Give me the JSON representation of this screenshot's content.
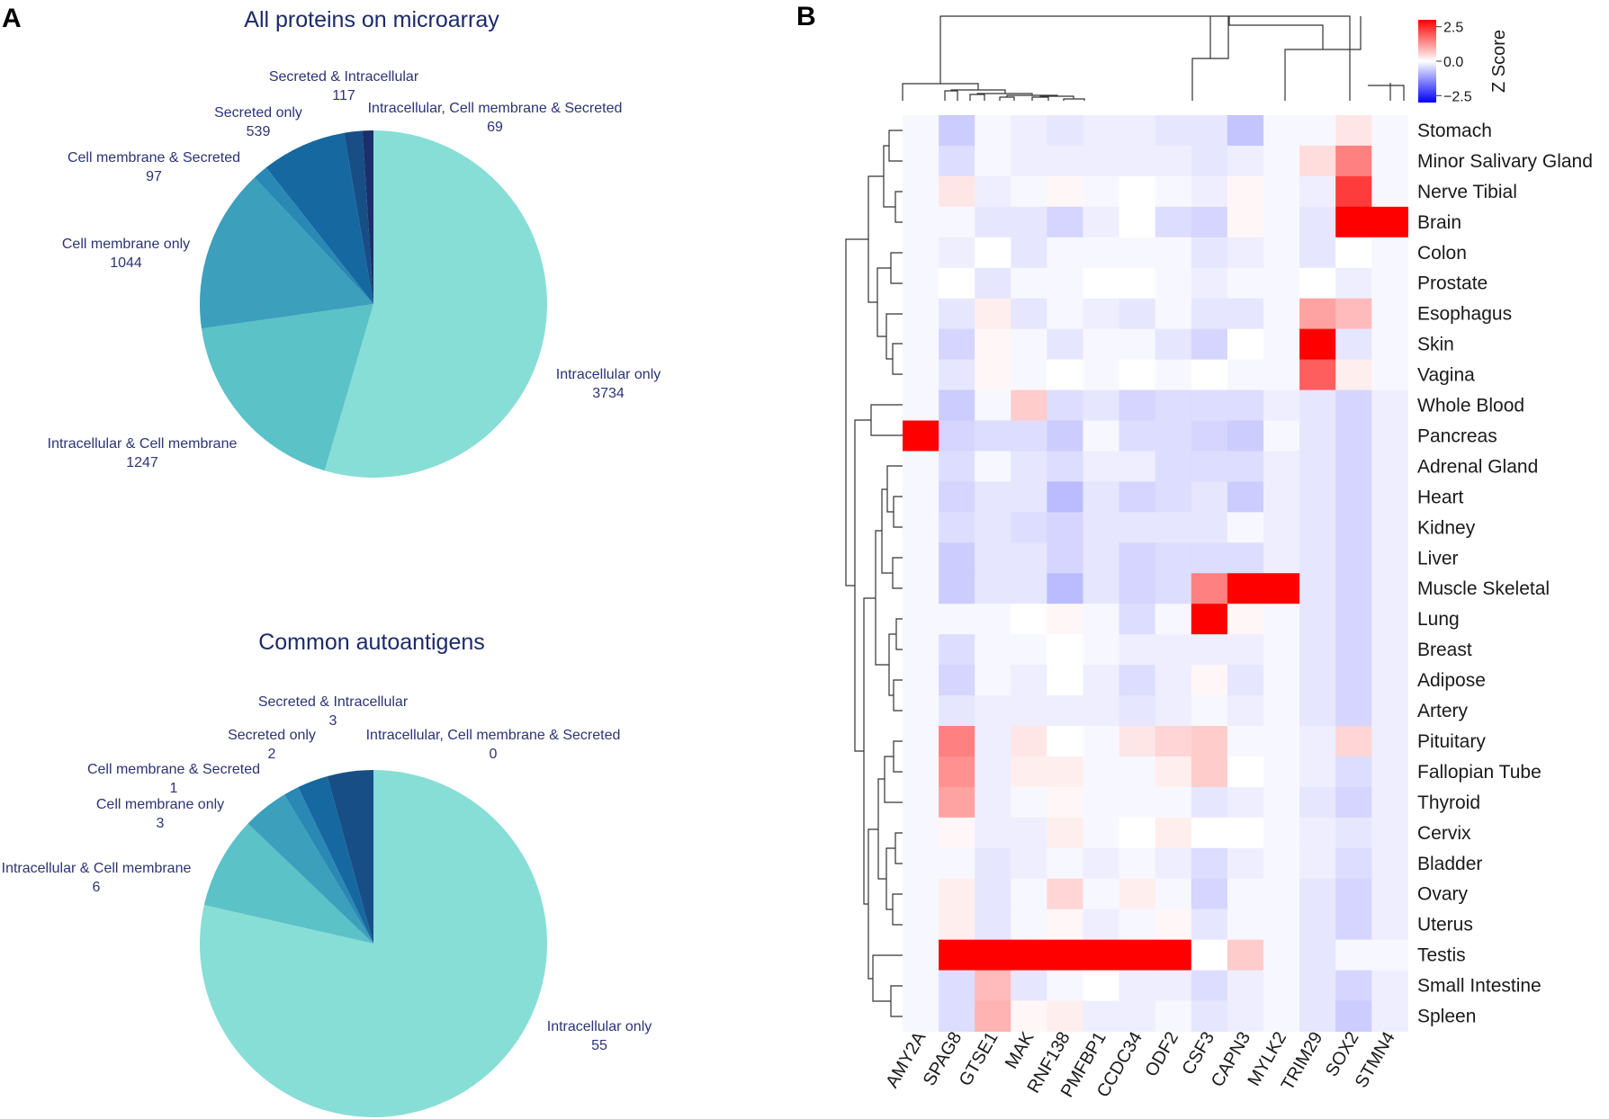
{
  "panels": {
    "a_letter": "A",
    "b_letter": "B"
  },
  "chart_data": [
    {
      "type": "pie",
      "title": "All proteins on microarray",
      "slices": [
        {
          "label": "Intracellular only",
          "value": 3734,
          "value_text": "3734",
          "color": "#87ded6"
        },
        {
          "label": "Intracellular & Cell membrane",
          "value": 1247,
          "value_text": "1247",
          "color": "#5bc2c8"
        },
        {
          "label": "Cell membrane only",
          "value": 1044,
          "value_text": "1044",
          "color": "#3c9fbc"
        },
        {
          "label": "Cell membrane & Secreted",
          "value": 97,
          "value_text": "97",
          "color": "#2a88b4"
        },
        {
          "label": "Secreted only",
          "value": 539,
          "value_text": "539",
          "color": "#1668a0"
        },
        {
          "label": "Secreted & Intracellular",
          "value": 117,
          "value_text": "117",
          "color": "#184e86"
        },
        {
          "label": "Intracellular, Cell membrane & Secreted",
          "value": 69,
          "value_text": "69",
          "color": "#1c2f6a"
        }
      ]
    },
    {
      "type": "pie",
      "title": "Common autoantigens",
      "slices": [
        {
          "label": "Intracellular only",
          "value": 55,
          "value_text": "55",
          "color": "#87ded6"
        },
        {
          "label": "Intracellular & Cell membrane",
          "value": 6,
          "value_text": "6",
          "color": "#5bc2c8"
        },
        {
          "label": "Cell membrane only",
          "value": 3,
          "value_text": "3",
          "color": "#3c9fbc"
        },
        {
          "label": "Cell membrane & Secreted",
          "value": 1,
          "value_text": "1",
          "color": "#2a88b4"
        },
        {
          "label": "Secreted only",
          "value": 2,
          "value_text": "2",
          "color": "#1668a0"
        },
        {
          "label": "Secreted & Intracellular",
          "value": 3,
          "value_text": "3",
          "color": "#184e86"
        },
        {
          "label": "Intracellular, Cell membrane & Secreted",
          "value": 0,
          "value_text": "0",
          "color": "#1c2f6a"
        }
      ]
    },
    {
      "type": "heatmap",
      "colorbar": {
        "title": "Z Score",
        "ticks": [
          "2.5",
          "0.0",
          "−2.5"
        ],
        "tick_values": [
          2.5,
          0.0,
          -2.5
        ],
        "range": [
          -3,
          3
        ]
      },
      "columns": [
        "AMY2A",
        "SPAG8",
        "GTSE1",
        "MAK",
        "RNF138",
        "PMFBP1",
        "CCDC34",
        "ODF2",
        "CSF3",
        "CAPN3",
        "MYLK2",
        "TRIM29",
        "SOX2",
        "STMN4"
      ],
      "rows": [
        "Stomach",
        "Minor Salivary Gland",
        "Nerve Tibial",
        "Brain",
        "Colon",
        "Prostate",
        "Esophagus",
        "Skin",
        "Vagina",
        "Whole Blood",
        "Pancreas",
        "Adrenal Gland",
        "Heart",
        "Kidney",
        "Liver",
        "Muscle Skeletal",
        "Lung",
        "Breast",
        "Adipose",
        "Artery",
        "Pituitary",
        "Fallopian Tube",
        "Thyroid",
        "Cervix",
        "Bladder",
        "Ovary",
        "Uterus",
        "Testis",
        "Small Intestine",
        "Spleen"
      ],
      "values": [
        [
          -0.1,
          -0.6,
          -0.1,
          -0.2,
          -0.3,
          -0.2,
          -0.2,
          -0.3,
          -0.3,
          -0.7,
          -0.1,
          -0.1,
          0.3,
          -0.1
        ],
        [
          -0.1,
          -0.4,
          -0.1,
          -0.2,
          -0.2,
          -0.2,
          -0.2,
          -0.2,
          -0.3,
          -0.2,
          -0.1,
          0.4,
          1.5,
          -0.1
        ],
        [
          -0.1,
          0.3,
          -0.2,
          -0.1,
          0.1,
          -0.1,
          0.0,
          -0.1,
          -0.2,
          0.1,
          -0.1,
          -0.2,
          2.3,
          -0.1
        ],
        [
          -0.1,
          -0.1,
          -0.3,
          -0.3,
          -0.5,
          -0.2,
          0.0,
          -0.4,
          -0.5,
          0.1,
          -0.1,
          -0.3,
          3.0,
          3.0
        ],
        [
          -0.1,
          -0.2,
          0.0,
          -0.3,
          -0.1,
          -0.1,
          -0.1,
          -0.1,
          -0.3,
          -0.2,
          -0.1,
          -0.3,
          0.0,
          -0.1
        ],
        [
          -0.1,
          0.0,
          -0.3,
          -0.1,
          -0.1,
          0.0,
          0.0,
          -0.1,
          -0.2,
          -0.1,
          -0.1,
          0.0,
          -0.2,
          -0.1
        ],
        [
          -0.1,
          -0.3,
          0.2,
          -0.3,
          -0.1,
          -0.2,
          -0.3,
          -0.1,
          -0.3,
          -0.3,
          -0.1,
          1.1,
          0.8,
          -0.1
        ],
        [
          -0.1,
          -0.5,
          0.1,
          -0.1,
          -0.3,
          -0.1,
          -0.1,
          -0.3,
          -0.5,
          0.0,
          -0.1,
          3.0,
          -0.3,
          -0.1
        ],
        [
          -0.1,
          -0.3,
          0.1,
          -0.1,
          0.0,
          -0.1,
          0.0,
          -0.1,
          0.0,
          -0.1,
          -0.1,
          1.9,
          0.2,
          -0.1
        ],
        [
          -0.1,
          -0.6,
          -0.1,
          0.6,
          -0.4,
          -0.3,
          -0.5,
          -0.4,
          -0.4,
          -0.4,
          -0.2,
          -0.3,
          -0.5,
          -0.2
        ],
        [
          3.0,
          -0.5,
          -0.4,
          -0.4,
          -0.6,
          -0.1,
          -0.4,
          -0.4,
          -0.5,
          -0.6,
          -0.1,
          -0.3,
          -0.5,
          -0.2
        ],
        [
          -0.1,
          -0.4,
          -0.1,
          -0.3,
          -0.4,
          -0.2,
          -0.2,
          -0.4,
          -0.4,
          -0.4,
          -0.2,
          -0.3,
          -0.5,
          -0.2
        ],
        [
          -0.1,
          -0.5,
          -0.3,
          -0.3,
          -0.8,
          -0.3,
          -0.5,
          -0.4,
          -0.3,
          -0.6,
          -0.2,
          -0.3,
          -0.5,
          -0.2
        ],
        [
          -0.1,
          -0.4,
          -0.3,
          -0.4,
          -0.5,
          -0.3,
          -0.3,
          -0.3,
          -0.3,
          -0.1,
          -0.2,
          -0.3,
          -0.5,
          -0.2
        ],
        [
          -0.1,
          -0.6,
          -0.3,
          -0.3,
          -0.5,
          -0.3,
          -0.5,
          -0.4,
          -0.4,
          -0.4,
          -0.2,
          -0.3,
          -0.5,
          -0.2
        ],
        [
          -0.1,
          -0.6,
          -0.3,
          -0.3,
          -0.8,
          -0.3,
          -0.5,
          -0.4,
          1.5,
          3.0,
          3.0,
          -0.3,
          -0.5,
          -0.2
        ],
        [
          -0.1,
          -0.1,
          -0.1,
          0.0,
          0.1,
          -0.1,
          -0.4,
          -0.1,
          3.0,
          0.1,
          -0.1,
          -0.3,
          -0.5,
          -0.2
        ],
        [
          -0.1,
          -0.4,
          -0.1,
          -0.1,
          0.0,
          -0.1,
          -0.2,
          -0.2,
          -0.2,
          -0.2,
          -0.1,
          -0.3,
          -0.5,
          -0.2
        ],
        [
          -0.1,
          -0.5,
          -0.1,
          -0.2,
          0.0,
          -0.2,
          -0.4,
          -0.2,
          0.1,
          -0.3,
          -0.1,
          -0.3,
          -0.5,
          -0.2
        ],
        [
          -0.1,
          -0.3,
          -0.2,
          -0.2,
          -0.2,
          -0.2,
          -0.3,
          -0.2,
          -0.1,
          -0.2,
          -0.1,
          -0.3,
          -0.5,
          -0.2
        ],
        [
          -0.1,
          1.5,
          -0.2,
          0.3,
          0.0,
          -0.1,
          0.3,
          0.5,
          0.6,
          -0.1,
          -0.1,
          -0.2,
          0.5,
          -0.2
        ],
        [
          -0.1,
          1.3,
          -0.2,
          0.2,
          0.2,
          -0.1,
          -0.1,
          0.2,
          0.6,
          0.0,
          -0.1,
          -0.2,
          -0.4,
          -0.2
        ],
        [
          -0.1,
          1.1,
          -0.2,
          -0.1,
          0.1,
          -0.1,
          -0.1,
          -0.1,
          -0.3,
          -0.2,
          -0.1,
          -0.3,
          -0.5,
          -0.2
        ],
        [
          -0.1,
          0.1,
          -0.2,
          -0.2,
          0.2,
          -0.1,
          0.0,
          0.2,
          0.0,
          0.0,
          -0.1,
          -0.2,
          -0.3,
          -0.2
        ],
        [
          -0.1,
          -0.1,
          -0.3,
          -0.2,
          -0.1,
          -0.2,
          -0.1,
          -0.2,
          -0.4,
          -0.2,
          -0.1,
          -0.2,
          -0.4,
          -0.2
        ],
        [
          -0.1,
          0.2,
          -0.3,
          -0.1,
          0.5,
          -0.1,
          0.2,
          -0.1,
          -0.5,
          -0.1,
          -0.1,
          -0.3,
          -0.5,
          -0.2
        ],
        [
          -0.1,
          0.2,
          -0.3,
          -0.1,
          0.1,
          -0.2,
          -0.1,
          0.1,
          -0.3,
          -0.1,
          -0.1,
          -0.3,
          -0.5,
          -0.2
        ],
        [
          -0.1,
          3.0,
          3.0,
          3.0,
          3.0,
          3.0,
          3.0,
          3.0,
          0.0,
          0.6,
          -0.1,
          -0.3,
          -0.1,
          -0.1
        ],
        [
          -0.1,
          -0.4,
          0.8,
          -0.3,
          -0.1,
          0.0,
          -0.2,
          -0.2,
          -0.4,
          -0.2,
          -0.1,
          -0.3,
          -0.5,
          -0.2
        ],
        [
          -0.1,
          -0.4,
          0.9,
          0.1,
          0.2,
          -0.2,
          -0.2,
          -0.1,
          -0.3,
          -0.2,
          -0.1,
          -0.3,
          -0.6,
          -0.2
        ]
      ]
    }
  ]
}
